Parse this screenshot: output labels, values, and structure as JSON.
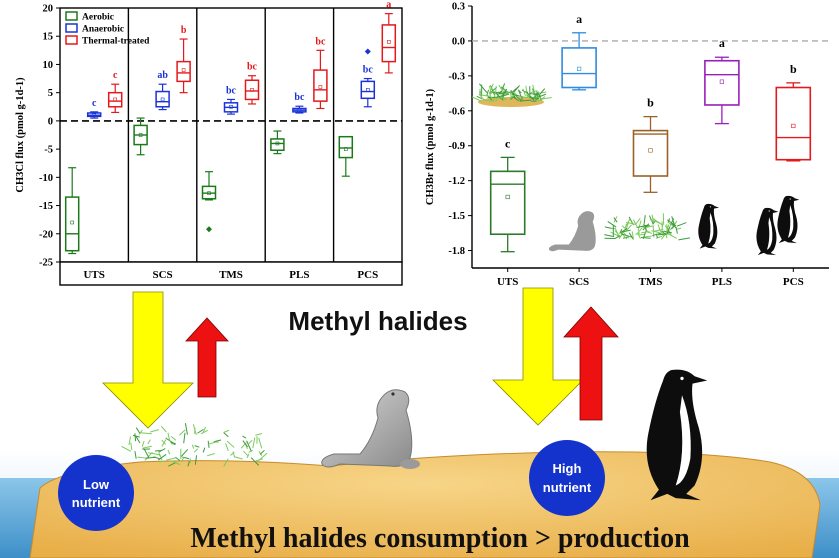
{
  "colors": {
    "aerobic": "#1a7a1a",
    "anaerobic": "#1a33d6",
    "thermal": "#e3191c",
    "ch3br": "#3a3a3a",
    "ch3br_scs": "#2f8be0",
    "ch3br_tms": "#9a6228",
    "ch3br_pls": "#9a1fb8",
    "ch3br_pcs": "#e3191c",
    "sand": "#f2c66a",
    "sea": "#5aa8d8",
    "arrow_down": "#ffff00",
    "arrow_up": "#ee1111",
    "nutrient_circle": "#1432cc"
  },
  "labels": {
    "middle_title": "Methyl halides",
    "bottom_caption": "Methyl halides consumption > production",
    "low_nutrient_line1": "Low",
    "low_nutrient_line2": "nutrient",
    "high_nutrient_line1": "High",
    "high_nutrient_line2": "nutrient"
  },
  "icons": [
    "moss-icon",
    "seal-icon",
    "penguin-icon",
    "penguin-pair-icon"
  ],
  "chart_data": [
    {
      "type": "box",
      "title": "",
      "ylabel": "CH3Cl flux (pmol g-1d-1)",
      "xlabel": "",
      "categories": [
        "UTS",
        "SCS",
        "TMS",
        "PLS",
        "PCS"
      ],
      "ylim": [
        -25,
        20
      ],
      "yticks": [
        20,
        15,
        10,
        5,
        0,
        -5,
        -10,
        -15,
        -20,
        -25
      ],
      "reference_line": 0,
      "legend": {
        "placement": "top-left",
        "entries": [
          "Aerobic",
          "Anaerobic",
          "Thermal-treated"
        ]
      },
      "series": [
        {
          "name": "Aerobic",
          "boxes": [
            {
              "whisker_low": -23.5,
              "q1": -23.0,
              "median": -20.0,
              "q3": -13.5,
              "whisker_high": -8.3,
              "mean": -18.0,
              "outlier": null,
              "letter": ""
            },
            {
              "whisker_low": -6.0,
              "q1": -4.2,
              "median": -2.5,
              "q3": -0.8,
              "whisker_high": 0.5,
              "mean": -2.5,
              "outlier": null,
              "letter": ""
            },
            {
              "whisker_low": -14.0,
              "q1": -13.8,
              "median": -12.8,
              "q3": -11.6,
              "whisker_high": -9.0,
              "mean": -12.8,
              "outlier": -19.2,
              "letter": ""
            },
            {
              "whisker_low": -5.8,
              "q1": -5.2,
              "median": -4.0,
              "q3": -3.2,
              "whisker_high": -1.8,
              "mean": -4.0,
              "outlier": null,
              "letter": ""
            },
            {
              "whisker_low": -9.8,
              "q1": -6.5,
              "median": -4.8,
              "q3": -2.8,
              "whisker_high": -2.8,
              "mean": -5.0,
              "outlier": null,
              "letter": ""
            }
          ]
        },
        {
          "name": "Anaerobic",
          "boxes": [
            {
              "whisker_low": 0.5,
              "q1": 0.8,
              "median": 1.0,
              "q3": 1.4,
              "whisker_high": 1.6,
              "mean": 1.0,
              "outlier": null,
              "letter": "c"
            },
            {
              "whisker_low": 2.0,
              "q1": 2.5,
              "median": 3.4,
              "q3": 5.2,
              "whisker_high": 6.5,
              "mean": 3.8,
              "outlier": null,
              "letter": "ab"
            },
            {
              "whisker_low": 1.2,
              "q1": 1.6,
              "median": 2.4,
              "q3": 3.2,
              "whisker_high": 3.8,
              "mean": 2.5,
              "outlier": null,
              "letter": "bc"
            },
            {
              "whisker_low": 1.4,
              "q1": 1.6,
              "median": 1.9,
              "q3": 2.2,
              "whisker_high": 2.6,
              "mean": 1.9,
              "outlier": null,
              "letter": "bc"
            },
            {
              "whisker_low": 2.5,
              "q1": 4.0,
              "median": 5.2,
              "q3": 7.0,
              "whisker_high": 7.5,
              "mean": 5.5,
              "outlier": 12.3,
              "letter": "bc"
            }
          ]
        },
        {
          "name": "Thermal-treated",
          "boxes": [
            {
              "whisker_low": 1.5,
              "q1": 2.5,
              "median": 3.5,
              "q3": 5.0,
              "whisker_high": 6.5,
              "mean": 3.8,
              "outlier": null,
              "letter": "c"
            },
            {
              "whisker_low": 5.0,
              "q1": 7.0,
              "median": 8.5,
              "q3": 10.5,
              "whisker_high": 14.5,
              "mean": 9.0,
              "outlier": null,
              "letter": "b"
            },
            {
              "whisker_low": 3.0,
              "q1": 3.8,
              "median": 5.3,
              "q3": 7.2,
              "whisker_high": 8.0,
              "mean": 5.5,
              "outlier": null,
              "letter": "bc"
            },
            {
              "whisker_low": 2.2,
              "q1": 3.5,
              "median": 5.5,
              "q3": 9.0,
              "whisker_high": 12.5,
              "mean": 6.0,
              "outlier": null,
              "letter": "bc"
            },
            {
              "whisker_low": 8.5,
              "q1": 10.5,
              "median": 13.0,
              "q3": 17.0,
              "whisker_high": 19.0,
              "mean": 14.0,
              "outlier": null,
              "letter": "a"
            }
          ]
        }
      ]
    },
    {
      "type": "box",
      "title": "",
      "ylabel": "CH3Br flux (pmol g-1d-1)",
      "xlabel": "",
      "categories": [
        "UTS",
        "SCS",
        "TMS",
        "PLS",
        "PCS"
      ],
      "ylim": [
        -1.95,
        0.3
      ],
      "yticks": [
        0.3,
        0.0,
        -0.3,
        -0.6,
        -0.9,
        -1.2,
        -1.5,
        -1.8
      ],
      "reference_line": 0,
      "series": [
        {
          "name": "",
          "boxes": [
            {
              "whisker_low": -1.81,
              "q1": -1.66,
              "median": -1.23,
              "q3": -1.12,
              "whisker_high": -1.0,
              "mean": -1.34,
              "letter": "c"
            },
            {
              "whisker_low": -0.42,
              "q1": -0.4,
              "median": -0.28,
              "q3": -0.06,
              "whisker_high": 0.07,
              "mean": -0.24,
              "letter": "a"
            },
            {
              "whisker_low": -1.3,
              "q1": -1.16,
              "median": -0.8,
              "q3": -0.77,
              "whisker_high": -0.65,
              "mean": -0.94,
              "letter": "b"
            },
            {
              "whisker_low": -0.71,
              "q1": -0.55,
              "median": -0.29,
              "q3": -0.17,
              "whisker_high": -0.14,
              "mean": -0.35,
              "letter": "a"
            },
            {
              "whisker_low": -1.03,
              "q1": -1.02,
              "median": -0.83,
              "q3": -0.4,
              "whisker_high": -0.36,
              "mean": -0.73,
              "letter": "b"
            }
          ]
        }
      ]
    }
  ]
}
